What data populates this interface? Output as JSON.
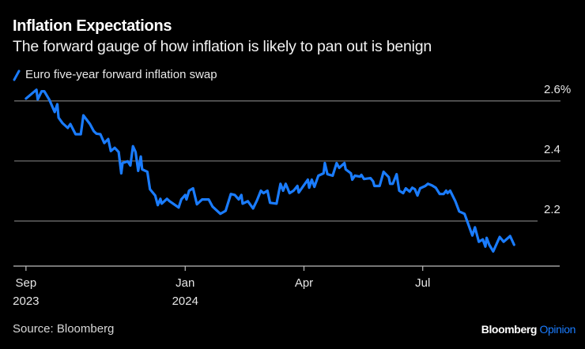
{
  "title": "Inflation Expectations",
  "subtitle": "The forward gauge of how inflation is likely to pan out is benign",
  "source": "Source: Bloomberg",
  "brand": {
    "name": "Bloomberg",
    "suffix": "Opinion"
  },
  "colors": {
    "background": "#000000",
    "line": "#1a7cff",
    "grid": "#6e6e6e",
    "accent": "#1a7cff"
  },
  "chart_data": {
    "type": "line",
    "title": "Inflation Expectations",
    "subtitle": "The forward gauge of how inflation is likely to pan out is benign",
    "legend_placement": "top-left",
    "grid": true,
    "ylim": [
      2.05,
      2.66
    ],
    "xlim": [
      "2023-08-23",
      "2024-09-27"
    ],
    "y_ticks": [
      {
        "value": 2.6,
        "label": "2.6%"
      },
      {
        "value": 2.4,
        "label": "2.4"
      },
      {
        "value": 2.2,
        "label": "2.2"
      }
    ],
    "x_ticks": [
      {
        "date": "2023-09-01",
        "label": "Sep",
        "sublabel": "2023"
      },
      {
        "date": "2024-01-01",
        "label": "Jan",
        "sublabel": "2024"
      },
      {
        "date": "2024-04-01",
        "label": "Apr",
        "sublabel": ""
      },
      {
        "date": "2024-07-01",
        "label": "Jul",
        "sublabel": ""
      }
    ],
    "series": [
      {
        "name": "Euro five-year forward inflation swap",
        "points": [
          [
            "2023-09-01",
            2.608
          ],
          [
            "2023-09-09",
            2.637
          ],
          [
            "2023-09-10",
            2.605
          ],
          [
            "2023-09-13",
            2.632
          ],
          [
            "2023-09-15",
            2.632
          ],
          [
            "2023-09-19",
            2.603
          ],
          [
            "2023-09-23",
            2.563
          ],
          [
            "2023-09-25",
            2.589
          ],
          [
            "2023-09-26",
            2.544
          ],
          [
            "2023-09-29",
            2.526
          ],
          [
            "2023-10-03",
            2.51
          ],
          [
            "2023-10-05",
            2.523
          ],
          [
            "2023-10-09",
            2.489
          ],
          [
            "2023-10-13",
            2.489
          ],
          [
            "2023-10-15",
            2.552
          ],
          [
            "2023-10-20",
            2.523
          ],
          [
            "2023-10-23",
            2.499
          ],
          [
            "2023-10-25",
            2.491
          ],
          [
            "2023-10-28",
            2.489
          ],
          [
            "2023-10-31",
            2.46
          ],
          [
            "2023-11-03",
            2.473
          ],
          [
            "2023-11-05",
            2.433
          ],
          [
            "2023-11-08",
            2.444
          ],
          [
            "2023-11-11",
            2.43
          ],
          [
            "2023-11-13",
            2.359
          ],
          [
            "2023-11-14",
            2.393
          ],
          [
            "2023-11-18",
            2.399
          ],
          [
            "2023-11-20",
            2.385
          ],
          [
            "2023-11-22",
            2.449
          ],
          [
            "2023-11-24",
            2.43
          ],
          [
            "2023-11-26",
            2.367
          ],
          [
            "2023-11-28",
            2.415
          ],
          [
            "2023-11-29",
            2.372
          ],
          [
            "2023-12-03",
            2.364
          ],
          [
            "2023-12-05",
            2.306
          ],
          [
            "2023-12-09",
            2.285
          ],
          [
            "2023-12-11",
            2.253
          ],
          [
            "2023-12-13",
            2.274
          ],
          [
            "2023-12-14",
            2.258
          ],
          [
            "2023-12-18",
            2.274
          ],
          [
            "2023-12-20",
            2.266
          ],
          [
            "2023-12-27",
            2.245
          ],
          [
            "2023-12-29",
            2.272
          ],
          [
            "2024-01-01",
            2.287
          ],
          [
            "2024-01-02",
            2.272
          ],
          [
            "2024-01-04",
            2.301
          ],
          [
            "2024-01-07",
            2.309
          ],
          [
            "2024-01-10",
            2.256
          ],
          [
            "2024-01-14",
            2.272
          ],
          [
            "2024-01-19",
            2.272
          ],
          [
            "2024-01-22",
            2.248
          ],
          [
            "2024-01-28",
            2.224
          ],
          [
            "2024-02-01",
            2.234
          ],
          [
            "2024-02-05",
            2.29
          ],
          [
            "2024-02-08",
            2.287
          ],
          [
            "2024-02-11",
            2.272
          ],
          [
            "2024-02-13",
            2.287
          ],
          [
            "2024-02-14",
            2.258
          ],
          [
            "2024-02-18",
            2.266
          ],
          [
            "2024-02-22",
            2.242
          ],
          [
            "2024-02-25",
            2.269
          ],
          [
            "2024-02-28",
            2.301
          ],
          [
            "2024-03-01",
            2.293
          ],
          [
            "2024-03-04",
            2.301
          ],
          [
            "2024-03-06",
            2.261
          ],
          [
            "2024-03-11",
            2.258
          ],
          [
            "2024-03-14",
            2.324
          ],
          [
            "2024-03-16",
            2.301
          ],
          [
            "2024-03-18",
            2.324
          ],
          [
            "2024-03-21",
            2.293
          ],
          [
            "2024-03-24",
            2.301
          ],
          [
            "2024-03-27",
            2.317
          ],
          [
            "2024-03-28",
            2.295
          ],
          [
            "2024-04-04",
            2.338
          ],
          [
            "2024-04-05",
            2.311
          ],
          [
            "2024-04-07",
            2.338
          ],
          [
            "2024-04-09",
            2.314
          ],
          [
            "2024-04-12",
            2.351
          ],
          [
            "2024-04-16",
            2.359
          ],
          [
            "2024-04-17",
            2.393
          ],
          [
            "2024-04-19",
            2.356
          ],
          [
            "2024-04-23",
            2.351
          ],
          [
            "2024-04-26",
            2.393
          ],
          [
            "2024-04-28",
            2.377
          ],
          [
            "2024-05-02",
            2.393
          ],
          [
            "2024-05-03",
            2.372
          ],
          [
            "2024-05-07",
            2.359
          ],
          [
            "2024-05-08",
            2.338
          ],
          [
            "2024-05-10",
            2.351
          ],
          [
            "2024-05-14",
            2.348
          ],
          [
            "2024-05-15",
            2.354
          ],
          [
            "2024-05-17",
            2.34
          ],
          [
            "2024-05-22",
            2.343
          ],
          [
            "2024-05-24",
            2.332
          ],
          [
            "2024-05-25",
            2.317
          ],
          [
            "2024-05-29",
            2.317
          ],
          [
            "2024-06-01",
            2.364
          ],
          [
            "2024-06-05",
            2.346
          ],
          [
            "2024-06-06",
            2.324
          ],
          [
            "2024-06-08",
            2.324
          ],
          [
            "2024-06-11",
            2.356
          ],
          [
            "2024-06-13",
            2.301
          ],
          [
            "2024-06-16",
            2.293
          ],
          [
            "2024-06-18",
            2.309
          ],
          [
            "2024-06-21",
            2.298
          ],
          [
            "2024-06-23",
            2.311
          ],
          [
            "2024-06-25",
            2.306
          ],
          [
            "2024-06-27",
            2.285
          ],
          [
            "2024-06-29",
            2.309
          ],
          [
            "2024-07-03",
            2.317
          ],
          [
            "2024-07-05",
            2.324
          ],
          [
            "2024-07-08",
            2.319
          ],
          [
            "2024-07-11",
            2.311
          ],
          [
            "2024-07-14",
            2.29
          ],
          [
            "2024-07-17",
            2.29
          ],
          [
            "2024-07-19",
            2.301
          ],
          [
            "2024-07-20",
            2.293
          ],
          [
            "2024-07-22",
            2.301
          ],
          [
            "2024-07-26",
            2.266
          ],
          [
            "2024-07-29",
            2.232
          ],
          [
            "2024-08-02",
            2.224
          ],
          [
            "2024-08-08",
            2.152
          ],
          [
            "2024-08-10",
            2.179
          ],
          [
            "2024-08-13",
            2.131
          ],
          [
            "2024-08-16",
            2.139
          ],
          [
            "2024-08-18",
            2.115
          ],
          [
            "2024-08-19",
            2.144
          ],
          [
            "2024-08-21",
            2.121
          ],
          [
            "2024-08-24",
            2.099
          ],
          [
            "2024-08-29",
            2.147
          ],
          [
            "2024-09-01",
            2.131
          ],
          [
            "2024-09-06",
            2.15
          ],
          [
            "2024-09-09",
            2.121
          ]
        ]
      }
    ]
  }
}
